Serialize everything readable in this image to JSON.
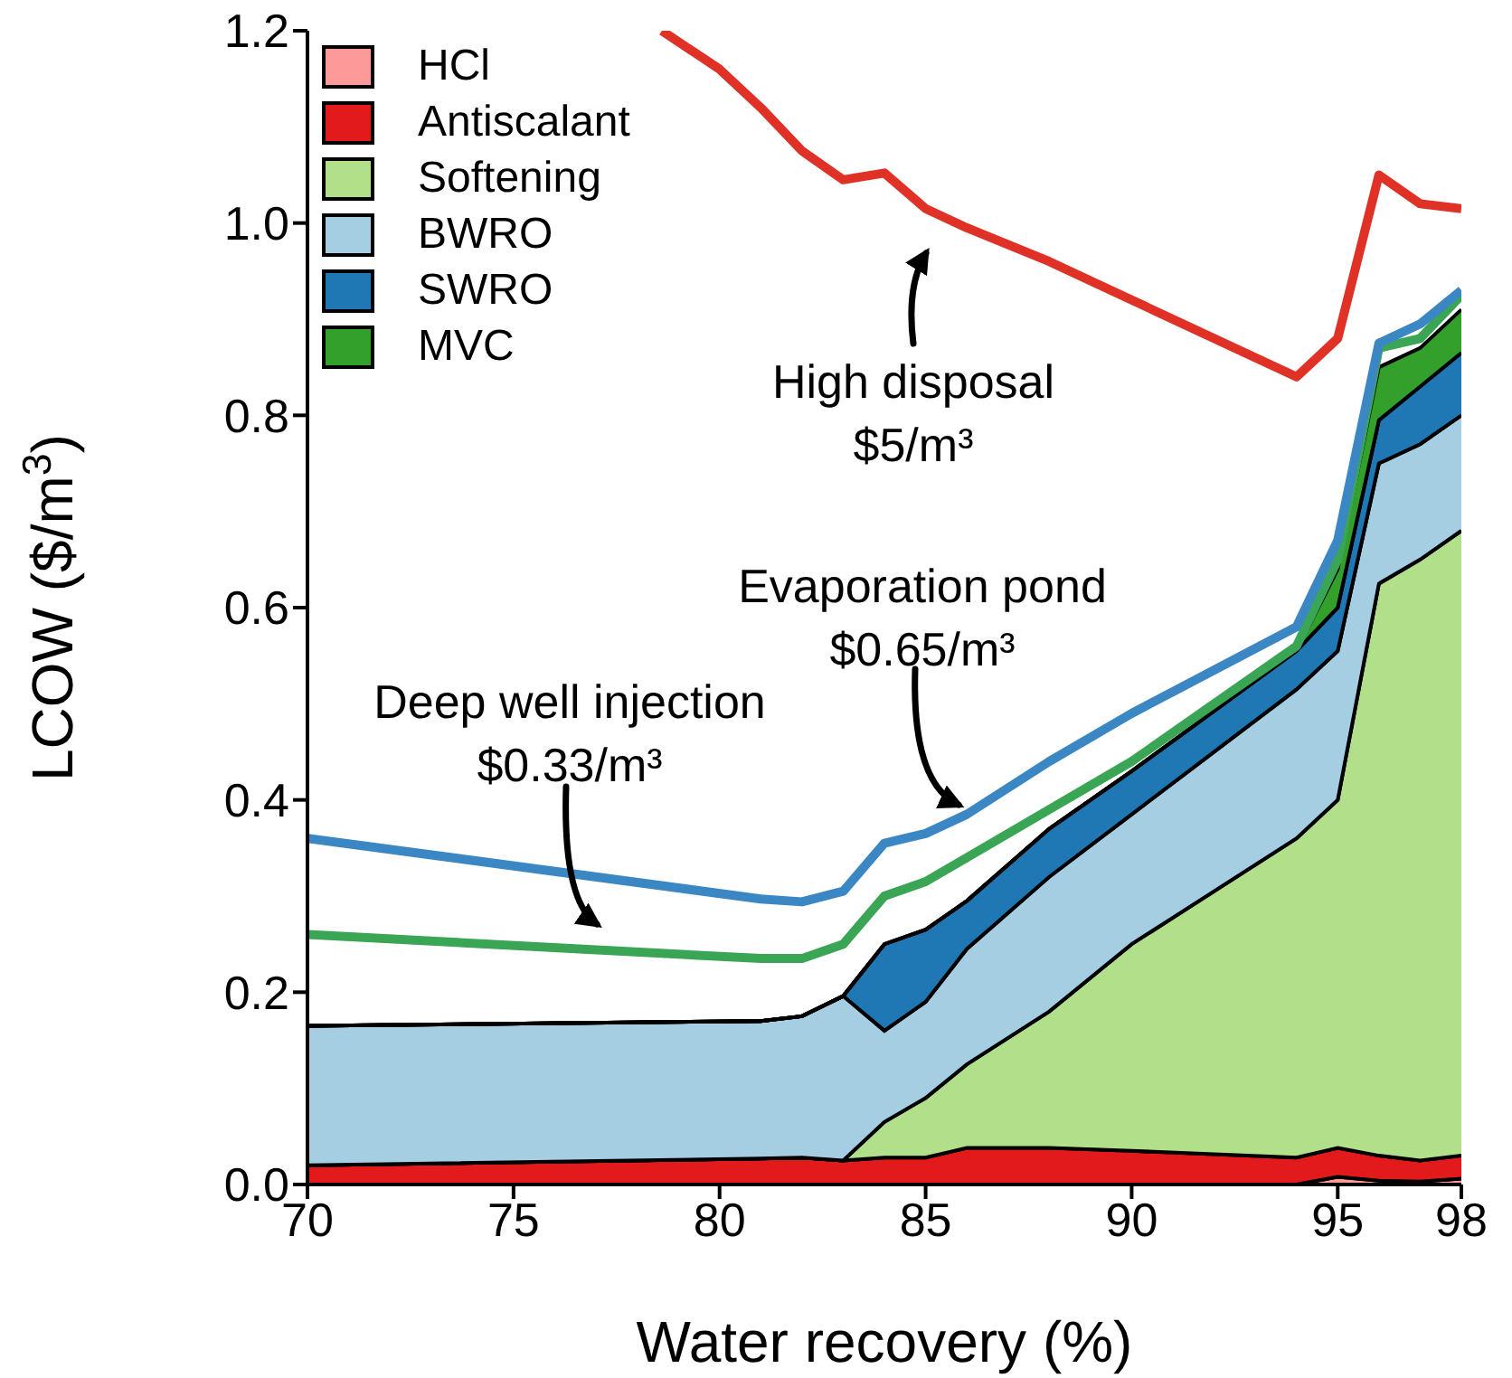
{
  "chart_data": {
    "type": "area",
    "stacked": true,
    "xlabel": "Water recovery (%)",
    "ylabel": "LCOW ($/m$^{3}$)",
    "x": [
      70,
      81,
      82,
      83,
      84,
      85,
      86,
      88,
      90,
      94,
      95,
      96,
      97,
      98
    ],
    "xlim": [
      70,
      98
    ],
    "xticks": [
      70,
      75,
      80,
      85,
      90,
      95,
      98
    ],
    "ylim": [
      0,
      1.2
    ],
    "yticks": [
      {
        "value": 0,
        "label": "0.0"
      },
      0.2,
      0.4,
      0.6,
      0.8,
      {
        "value": 1,
        "label": "1.0"
      },
      1.2
    ],
    "legend": "top left",
    "series": [
      {
        "name": "HCl",
        "color": "#fb9a99",
        "values": [
          0,
          0,
          0,
          0,
          0,
          0,
          0,
          0,
          0,
          0,
          0.008,
          0.004,
          0.003,
          0.006
        ]
      },
      {
        "name": "Antiscalant",
        "color": "#e31a1c",
        "values": [
          0.02,
          0.027,
          0.028,
          0.025,
          0.028,
          0.028,
          0.038,
          0.038,
          0.035,
          0.028,
          0.03,
          0.026,
          0.022,
          0.024
        ]
      },
      {
        "name": "Softening",
        "color": "#b2df8a",
        "values": [
          0,
          0,
          0,
          0,
          0.037,
          0.062,
          0.087,
          0.142,
          0.215,
          0.332,
          0.362,
          0.595,
          0.625,
          0.65
        ]
      },
      {
        "name": "BWRO",
        "color": "#a6cee3",
        "values": [
          0.145,
          0.143,
          0.147,
          0.171,
          0.095,
          0.1,
          0.12,
          0.14,
          0.135,
          0.155,
          0.155,
          0.125,
          0.12,
          0.12
        ]
      },
      {
        "name": "SWRO",
        "color": "#1f78b4",
        "values": [
          0,
          0,
          0,
          0,
          0.09,
          0.075,
          0.05,
          0.05,
          0.045,
          0.04,
          0.045,
          0.045,
          0.06,
          0.065
        ]
      },
      {
        "name": "MVC",
        "color": "#33a02c",
        "values": [
          0,
          0,
          0,
          0,
          0,
          0,
          0,
          0,
          0,
          0,
          0.04,
          0.055,
          0.04,
          0.045
        ]
      },
      {
        "type": "line",
        "color": "#e03127",
        "x": [
          78.6,
          80,
          81,
          82,
          83,
          84,
          85,
          86,
          88,
          90,
          94,
          95,
          96,
          97,
          98
        ],
        "values": [
          1.2,
          1.16,
          1.12,
          1.075,
          1.045,
          1.052,
          1.015,
          0.995,
          0.96,
          0.92,
          0.84,
          0.88,
          1.05,
          1.02,
          1.015
        ]
      },
      {
        "type": "line",
        "color": "#3aa655",
        "values": [
          0.26,
          0.235,
          0.235,
          0.25,
          0.3,
          0.315,
          0.34,
          0.39,
          0.44,
          0.56,
          0.65,
          0.87,
          0.88,
          0.925
        ]
      },
      {
        "type": "line",
        "color": "#3a87c4",
        "values": [
          0.36,
          0.297,
          0.294,
          0.305,
          0.355,
          0.365,
          0.385,
          0.44,
          0.49,
          0.58,
          0.67,
          0.875,
          0.895,
          0.93
        ]
      }
    ],
    "annotations": [
      "High disposal\n$5/m³",
      "Evaporation pond\n$0.65/m³",
      "Deep well injection\n$0.33/m³"
    ]
  }
}
